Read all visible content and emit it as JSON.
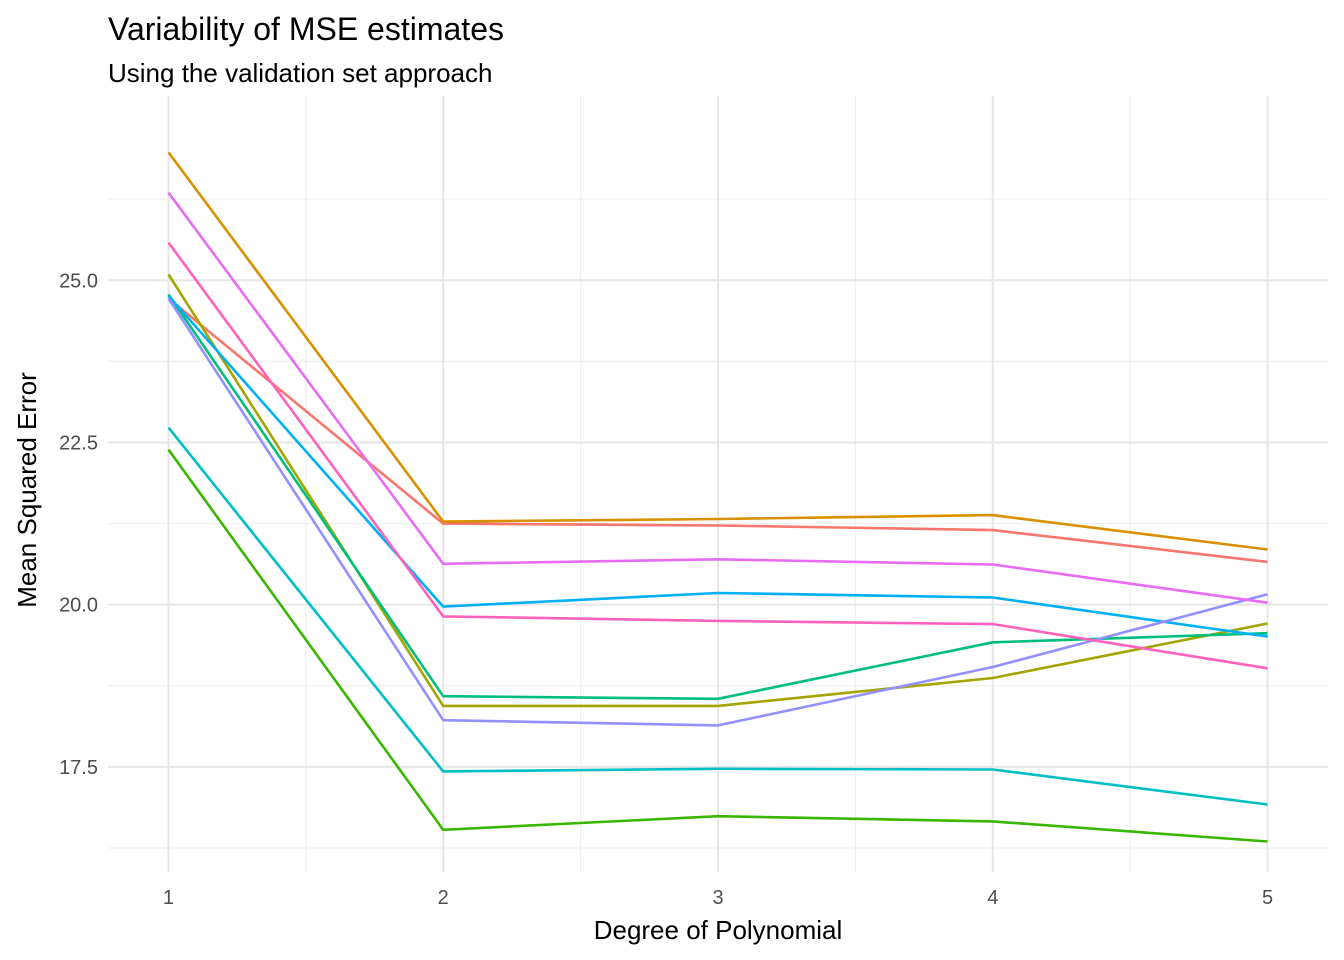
{
  "chart_data": {
    "type": "line",
    "title": "Variability of MSE estimates",
    "subtitle": "Using the validation set approach",
    "xlabel": "Degree of Polynomial",
    "ylabel": "Mean Squared Error",
    "x": [
      1,
      2,
      3,
      4,
      5
    ],
    "x_ticks": [
      "1",
      "2",
      "3",
      "4",
      "5"
    ],
    "y_ticks": [
      "17.5",
      "20.0",
      "22.5",
      "25.0"
    ],
    "y_tick_values": [
      17.5,
      20.0,
      22.5,
      25.0
    ],
    "xlim": [
      0.78,
      5.22
    ],
    "ylim": [
      15.88,
      27.84
    ],
    "grid": true,
    "legend": "none",
    "series": [
      {
        "color": "#F8766D",
        "values": [
          24.72,
          21.25,
          21.22,
          21.15,
          20.66
        ]
      },
      {
        "color": "#D89000",
        "values": [
          26.97,
          21.28,
          21.32,
          21.38,
          20.85
        ]
      },
      {
        "color": "#A3A500",
        "values": [
          25.09,
          18.44,
          18.44,
          18.87,
          19.71
        ]
      },
      {
        "color": "#39B600",
        "values": [
          22.39,
          16.53,
          16.74,
          16.66,
          16.35
        ]
      },
      {
        "color": "#00BF7D",
        "values": [
          24.78,
          18.59,
          18.55,
          19.42,
          19.56
        ]
      },
      {
        "color": "#00BFC4",
        "values": [
          22.73,
          17.43,
          17.47,
          17.46,
          16.92
        ]
      },
      {
        "color": "#00B0F6",
        "values": [
          24.76,
          19.97,
          20.18,
          20.11,
          19.51
        ]
      },
      {
        "color": "#9590FF",
        "values": [
          24.72,
          18.22,
          18.14,
          19.04,
          20.16
        ]
      },
      {
        "color": "#E76BF3",
        "values": [
          26.35,
          20.63,
          20.7,
          20.62,
          20.03
        ]
      },
      {
        "color": "#FF62BC",
        "values": [
          25.58,
          19.82,
          19.75,
          19.7,
          19.02
        ]
      }
    ]
  }
}
